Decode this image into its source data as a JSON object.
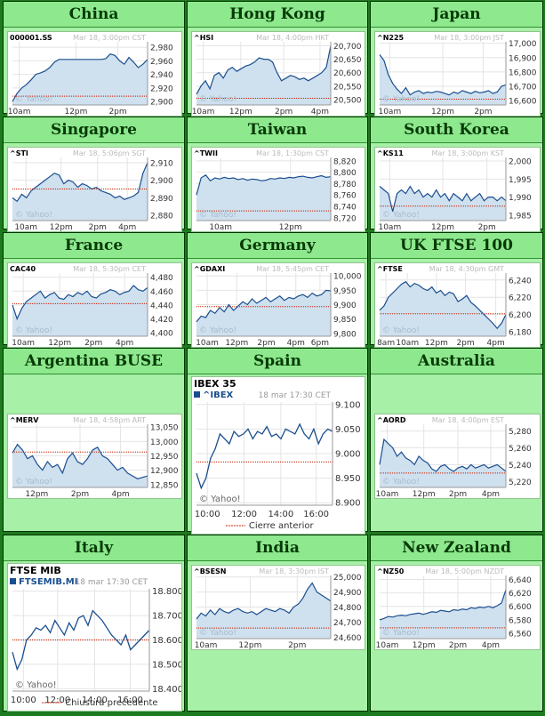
{
  "charts": [
    {
      "region": "China",
      "symbol": "000001.SS",
      "stamp": "Mar 18, 3:00pm CST",
      "watermark": "© Yahoo!",
      "ylabels": [
        "2,980",
        "2,960",
        "2,940",
        "2,920",
        "2,900"
      ],
      "xlabels": [
        "10am",
        "12pm",
        "2pm"
      ],
      "chart_data": {
        "type": "area",
        "ylim": [
          2895,
          2988
        ],
        "prev_close": 2908,
        "yticks": [
          2980,
          2960,
          2940,
          2920,
          2900
        ],
        "xticks": [
          0.05,
          0.47,
          0.78
        ],
        "values": [
          2900,
          2912,
          2920,
          2925,
          2932,
          2940,
          2942,
          2945,
          2950,
          2958,
          2962,
          2962,
          2962,
          2962,
          2962,
          2962,
          2962,
          2962,
          2962,
          2962,
          2963,
          2970,
          2968,
          2960,
          2955,
          2965,
          2958,
          2950,
          2955,
          2962
        ]
      }
    },
    {
      "region": "Hong Kong",
      "symbol": "^HSI",
      "stamp": "Mar 18, 4:00pm HKT",
      "watermark": "© Yahoo!",
      "ylabels": [
        "20,700",
        "20,650",
        "20,600",
        "20,550",
        "20,500"
      ],
      "xlabels": [
        "10am",
        "12pm",
        "2pm",
        "4pm"
      ],
      "chart_data": {
        "type": "area",
        "ylim": [
          20480,
          20715
        ],
        "prev_close": 20505,
        "yticks": [
          20700,
          20650,
          20600,
          20550,
          20500
        ],
        "xticks": [
          0.05,
          0.33,
          0.65,
          0.92
        ],
        "values": [
          20520,
          20550,
          20570,
          20540,
          20590,
          20600,
          20580,
          20610,
          20620,
          20605,
          20615,
          20625,
          20630,
          20640,
          20655,
          20650,
          20650,
          20640,
          20600,
          20570,
          20580,
          20590,
          20585,
          20575,
          20580,
          20570,
          20580,
          20590,
          20600,
          20620,
          20700
        ]
      }
    },
    {
      "region": "Japan",
      "symbol": "^N225",
      "stamp": "Mar 18, 3:00pm JST",
      "watermark": "© Yahoo!",
      "ylabels": [
        "17,000",
        "16,900",
        "16,800",
        "16,700",
        "16,600"
      ],
      "xlabels": [
        "10am",
        "12pm",
        "2pm"
      ],
      "chart_data": {
        "type": "area",
        "ylim": [
          16570,
          17010
        ],
        "prev_close": 16610,
        "yticks": [
          17000,
          16900,
          16800,
          16700,
          16600
        ],
        "xticks": [
          0.08,
          0.5,
          0.82
        ],
        "values": [
          16920,
          16880,
          16780,
          16720,
          16680,
          16650,
          16690,
          16640,
          16660,
          16670,
          16650,
          16660,
          16655,
          16665,
          16660,
          16650,
          16640,
          16660,
          16650,
          16670,
          16660,
          16650,
          16665,
          16655,
          16660,
          16670,
          16650,
          16660,
          16700,
          16710
        ]
      }
    },
    {
      "region": "Singapore",
      "symbol": "^STI",
      "stamp": "Mar 18, 5:06pm SGT",
      "watermark": "© Yahoo!",
      "ylabels": [
        "2,910",
        "2,900",
        "2,890",
        "2,880"
      ],
      "xlabels": [
        "10am",
        "12pm",
        "2pm",
        "4pm"
      ],
      "chart_data": {
        "type": "area",
        "ylim": [
          2877,
          2913
        ],
        "prev_close": 2895,
        "yticks": [
          2910,
          2900,
          2890,
          2880
        ],
        "xticks": [
          0.1,
          0.36,
          0.63,
          0.85
        ],
        "values": [
          2890,
          2888,
          2892,
          2890,
          2894,
          2896,
          2898,
          2900,
          2902,
          2904,
          2903,
          2898,
          2900,
          2899,
          2896,
          2898,
          2897,
          2895,
          2896,
          2894,
          2893,
          2892,
          2890,
          2891,
          2889,
          2890,
          2891,
          2893,
          2904,
          2910
        ]
      }
    },
    {
      "region": "Taiwan",
      "symbol": "^TWII",
      "stamp": "Mar 18, 1:30pm CST",
      "watermark": "© Yahoo!",
      "ylabels": [
        "8,820",
        "8,800",
        "8,780",
        "8,760",
        "8,740",
        "8,720"
      ],
      "xlabels": [
        "10am",
        "12pm"
      ],
      "chart_data": {
        "type": "area",
        "ylim": [
          8715,
          8826
        ],
        "prev_close": 8732,
        "yticks": [
          8820,
          8800,
          8780,
          8760,
          8740,
          8720
        ],
        "xticks": [
          0.18,
          0.7
        ],
        "values": [
          8760,
          8790,
          8795,
          8785,
          8790,
          8788,
          8791,
          8789,
          8790,
          8787,
          8789,
          8786,
          8788,
          8787,
          8785,
          8786,
          8789,
          8788,
          8790,
          8789,
          8791,
          8790,
          8792,
          8793,
          8791,
          8790,
          8792,
          8794,
          8791,
          8792
        ]
      }
    },
    {
      "region": "South Korea",
      "symbol": "^KS11",
      "stamp": "Mar 18, 3:00pm KST",
      "watermark": "© Yahoo!",
      "ylabels": [
        "2,000",
        "1,995",
        "1,990",
        "1,985"
      ],
      "xlabels": [
        "10am",
        "12pm",
        "2pm"
      ],
      "chart_data": {
        "type": "area",
        "ylim": [
          1983.5,
          2001
        ],
        "prev_close": 1987.5,
        "yticks": [
          2000,
          1995,
          1990,
          1985
        ],
        "xticks": [
          0.08,
          0.5,
          0.85
        ],
        "values": [
          1993,
          1992,
          1991,
          1986,
          1991,
          1992,
          1991,
          1993,
          1991,
          1992,
          1990,
          1991,
          1990,
          1992,
          1990,
          1991,
          1989,
          1991,
          1990,
          1989,
          1991,
          1989,
          1990,
          1991,
          1989,
          1990,
          1990,
          1989,
          1990,
          1989
        ]
      }
    },
    {
      "region": "France",
      "symbol": "CAC40",
      "stamp": "Mar 18, 5:30pm CET",
      "watermark": "© Yahoo!",
      "ylabels": [
        "4,480",
        "4,460",
        "4,440",
        "4,420",
        "4,400"
      ],
      "xlabels": [
        "10am",
        "12pm",
        "2pm",
        "4pm"
      ],
      "chart_data": {
        "type": "area",
        "ylim": [
          4395,
          4486
        ],
        "prev_close": 4442,
        "yticks": [
          4480,
          4460,
          4440,
          4420,
          4400
        ],
        "xticks": [
          0.08,
          0.35,
          0.6,
          0.83
        ],
        "values": [
          4440,
          4420,
          4435,
          4445,
          4450,
          4455,
          4460,
          4450,
          4455,
          4458,
          4450,
          4448,
          4455,
          4452,
          4458,
          4455,
          4460,
          4452,
          4450,
          4456,
          4458,
          4462,
          4460,
          4455,
          4458,
          4460,
          4468,
          4462,
          4460,
          4465
        ]
      }
    },
    {
      "region": "Germany",
      "symbol": "^GDAXI",
      "stamp": "Mar 18, 5:45pm CET",
      "watermark": "© Yahoo!",
      "ylabels": [
        "10,000",
        "9,950",
        "9,900",
        "9,850",
        "9,800"
      ],
      "xlabels": [
        "10am",
        "12pm",
        "2pm",
        "4pm",
        "6pm"
      ],
      "chart_data": {
        "type": "area",
        "ylim": [
          9790,
          10010
        ],
        "prev_close": 9893,
        "yticks": [
          10000,
          9950,
          9900,
          9850,
          9800
        ],
        "xticks": [
          0.08,
          0.3,
          0.52,
          0.74,
          0.92
        ],
        "values": [
          9840,
          9860,
          9855,
          9880,
          9870,
          9890,
          9875,
          9900,
          9880,
          9895,
          9910,
          9900,
          9920,
          9905,
          9915,
          9925,
          9910,
          9920,
          9930,
          9915,
          9925,
          9920,
          9930,
          9935,
          9925,
          9940,
          9930,
          9935,
          9950,
          9948
        ]
      }
    },
    {
      "region": "UK FTSE 100",
      "symbol": "^FTSE",
      "stamp": "Mar 18, 4:30pm GMT",
      "watermark": "© Yahoo!",
      "ylabels": [
        "6,240",
        "6,220",
        "6,200",
        "6,180"
      ],
      "xlabels": [
        "8am",
        "10am",
        "12pm",
        "2pm",
        "4pm"
      ],
      "chart_data": {
        "type": "area",
        "ylim": [
          6175,
          6248
        ],
        "prev_close": 6201,
        "yticks": [
          6240,
          6220,
          6200,
          6180
        ],
        "xticks": [
          0.05,
          0.22,
          0.45,
          0.68,
          0.92
        ],
        "values": [
          6205,
          6210,
          6220,
          6225,
          6230,
          6235,
          6238,
          6232,
          6236,
          6234,
          6230,
          6228,
          6232,
          6225,
          6228,
          6222,
          6226,
          6224,
          6215,
          6218,
          6222,
          6214,
          6210,
          6205,
          6200,
          6195,
          6190,
          6184,
          6190,
          6200
        ]
      }
    },
    {
      "region": "Argentina BUSE",
      "symbol": "^MERV",
      "stamp": "Mar 18, 4:58pm ART",
      "watermark": "© Yahoo!",
      "ylabels": [
        "13,050",
        "13,000",
        "12,950",
        "12,900",
        "12,850"
      ],
      "xlabels": [
        "12pm",
        "2pm",
        "4pm"
      ],
      "chart_data": {
        "type": "area",
        "ylim": [
          12840,
          13060
        ],
        "prev_close": 12963,
        "yticks": [
          13050,
          13000,
          12950,
          12900,
          12850
        ],
        "xticks": [
          0.18,
          0.5,
          0.8
        ],
        "values": [
          12960,
          12990,
          12970,
          12940,
          12950,
          12920,
          12900,
          12930,
          12910,
          12920,
          12890,
          12940,
          12960,
          12930,
          12920,
          12940,
          12970,
          12980,
          12950,
          12940,
          12920,
          12900,
          12910,
          12890,
          12880,
          12870,
          12875,
          12880
        ]
      }
    },
    {
      "region": "Spain",
      "symbol": "IBEX 35",
      "sub": "^IBEX",
      "stamp": "18 mar 17:30 CET",
      "watermark": "© Yahoo!",
      "ylabels": [
        "9.100",
        "9.050",
        "9.000",
        "8.950",
        "8.900"
      ],
      "xlabels": [
        "10:00",
        "12:00",
        "14:00",
        "16:00"
      ],
      "prev_label": "Cierre anterior",
      "chart_data": {
        "type": "line",
        "ylim": [
          8895,
          9105
        ],
        "prev_close": 8983,
        "yticks": [
          9100,
          9050,
          9000,
          8950,
          8900
        ],
        "xticks": [
          0.08,
          0.35,
          0.62,
          0.88
        ],
        "values": [
          8960,
          8930,
          8950,
          8990,
          9010,
          9040,
          9030,
          9020,
          9045,
          9035,
          9040,
          9050,
          9030,
          9045,
          9040,
          9055,
          9035,
          9040,
          9030,
          9050,
          9045,
          9040,
          9060,
          9040,
          9030,
          9050,
          9020,
          9040,
          9050,
          9045
        ]
      }
    },
    {
      "region": "Australia",
      "symbol": "^AORD",
      "stamp": "Mar 18, 4:00pm EST",
      "watermark": "© Yahoo!",
      "ylabels": [
        "5,280",
        "5,260",
        "5,240",
        "5,220"
      ],
      "xlabels": [
        "10am",
        "12pm",
        "2pm",
        "4pm"
      ],
      "chart_data": {
        "type": "area",
        "ylim": [
          5213,
          5288
        ],
        "prev_close": 5230,
        "yticks": [
          5280,
          5260,
          5240,
          5220
        ],
        "xticks": [
          0.06,
          0.35,
          0.62,
          0.88
        ],
        "values": [
          5240,
          5270,
          5265,
          5260,
          5250,
          5255,
          5248,
          5245,
          5240,
          5250,
          5245,
          5242,
          5235,
          5232,
          5238,
          5240,
          5235,
          5232,
          5236,
          5238,
          5235,
          5240,
          5236,
          5238,
          5240,
          5236,
          5238,
          5240,
          5236,
          5232
        ]
      }
    },
    {
      "region": "Italy",
      "symbol": "FTSE MIB",
      "sub": "FTSEMIB.MI",
      "stamp": "18 mar 17:30 CET",
      "watermark": "© Yahoo!",
      "ylabels": [
        "18.800",
        "18.700",
        "18.600",
        "18.500",
        "18.400"
      ],
      "xlabels": [
        "10:00",
        "12:00",
        "14:00",
        "16:00"
      ],
      "prev_label": "Chiusura precedente",
      "chart_data": {
        "type": "line",
        "ylim": [
          18390,
          18810
        ],
        "prev_close": 18600,
        "yticks": [
          18800,
          18700,
          18600,
          18500,
          18400
        ],
        "xticks": [
          0.08,
          0.33,
          0.6,
          0.86
        ],
        "values": [
          18550,
          18480,
          18520,
          18600,
          18620,
          18650,
          18640,
          18660,
          18630,
          18680,
          18650,
          18620,
          18670,
          18640,
          18690,
          18700,
          18660,
          18720,
          18700,
          18680,
          18650,
          18620,
          18600,
          18580,
          18620,
          18560,
          18580,
          18600,
          18620,
          18640
        ]
      }
    },
    {
      "region": "India",
      "symbol": "^BSESN",
      "stamp": "Mar 18, 3:30pm IST",
      "watermark": "© Yahoo!",
      "ylabels": [
        "25,000",
        "24,900",
        "24,800",
        "24,700",
        "24,600"
      ],
      "xlabels": [
        "10am",
        "12pm",
        "2pm"
      ],
      "chart_data": {
        "type": "area",
        "ylim": [
          24590,
          25010
        ],
        "prev_close": 24660,
        "yticks": [
          25000,
          24900,
          24800,
          24700,
          24600
        ],
        "xticks": [
          0.07,
          0.4,
          0.75
        ],
        "values": [
          24720,
          24760,
          24740,
          24780,
          24750,
          24790,
          24770,
          24760,
          24780,
          24790,
          24770,
          24760,
          24770,
          24750,
          24770,
          24790,
          24780,
          24770,
          24790,
          24780,
          24760,
          24800,
          24820,
          24860,
          24920,
          24960,
          24900,
          24880,
          24860,
          24840
        ]
      }
    },
    {
      "region": "New Zealand",
      "symbol": "^NZ50",
      "stamp": "Mar 18, 5:00pm NZDT",
      "watermark": "© Yahoo!",
      "ylabels": [
        "6,640",
        "6,620",
        "6,600",
        "6,580",
        "6,560"
      ],
      "xlabels": [
        "10am",
        "12pm",
        "2pm",
        "4pm"
      ],
      "chart_data": {
        "type": "area",
        "ylim": [
          6552,
          6646
        ],
        "prev_close": 6568,
        "yticks": [
          6640,
          6620,
          6600,
          6580,
          6560
        ],
        "xticks": [
          0.06,
          0.35,
          0.62,
          0.88
        ],
        "values": [
          6580,
          6582,
          6585,
          6584,
          6586,
          6587,
          6586,
          6588,
          6589,
          6590,
          6588,
          6590,
          6592,
          6591,
          6594,
          6593,
          6592,
          6595,
          6594,
          6596,
          6595,
          6598,
          6597,
          6599,
          6598,
          6600,
          6598,
          6601,
          6605,
          6625
        ]
      }
    }
  ]
}
